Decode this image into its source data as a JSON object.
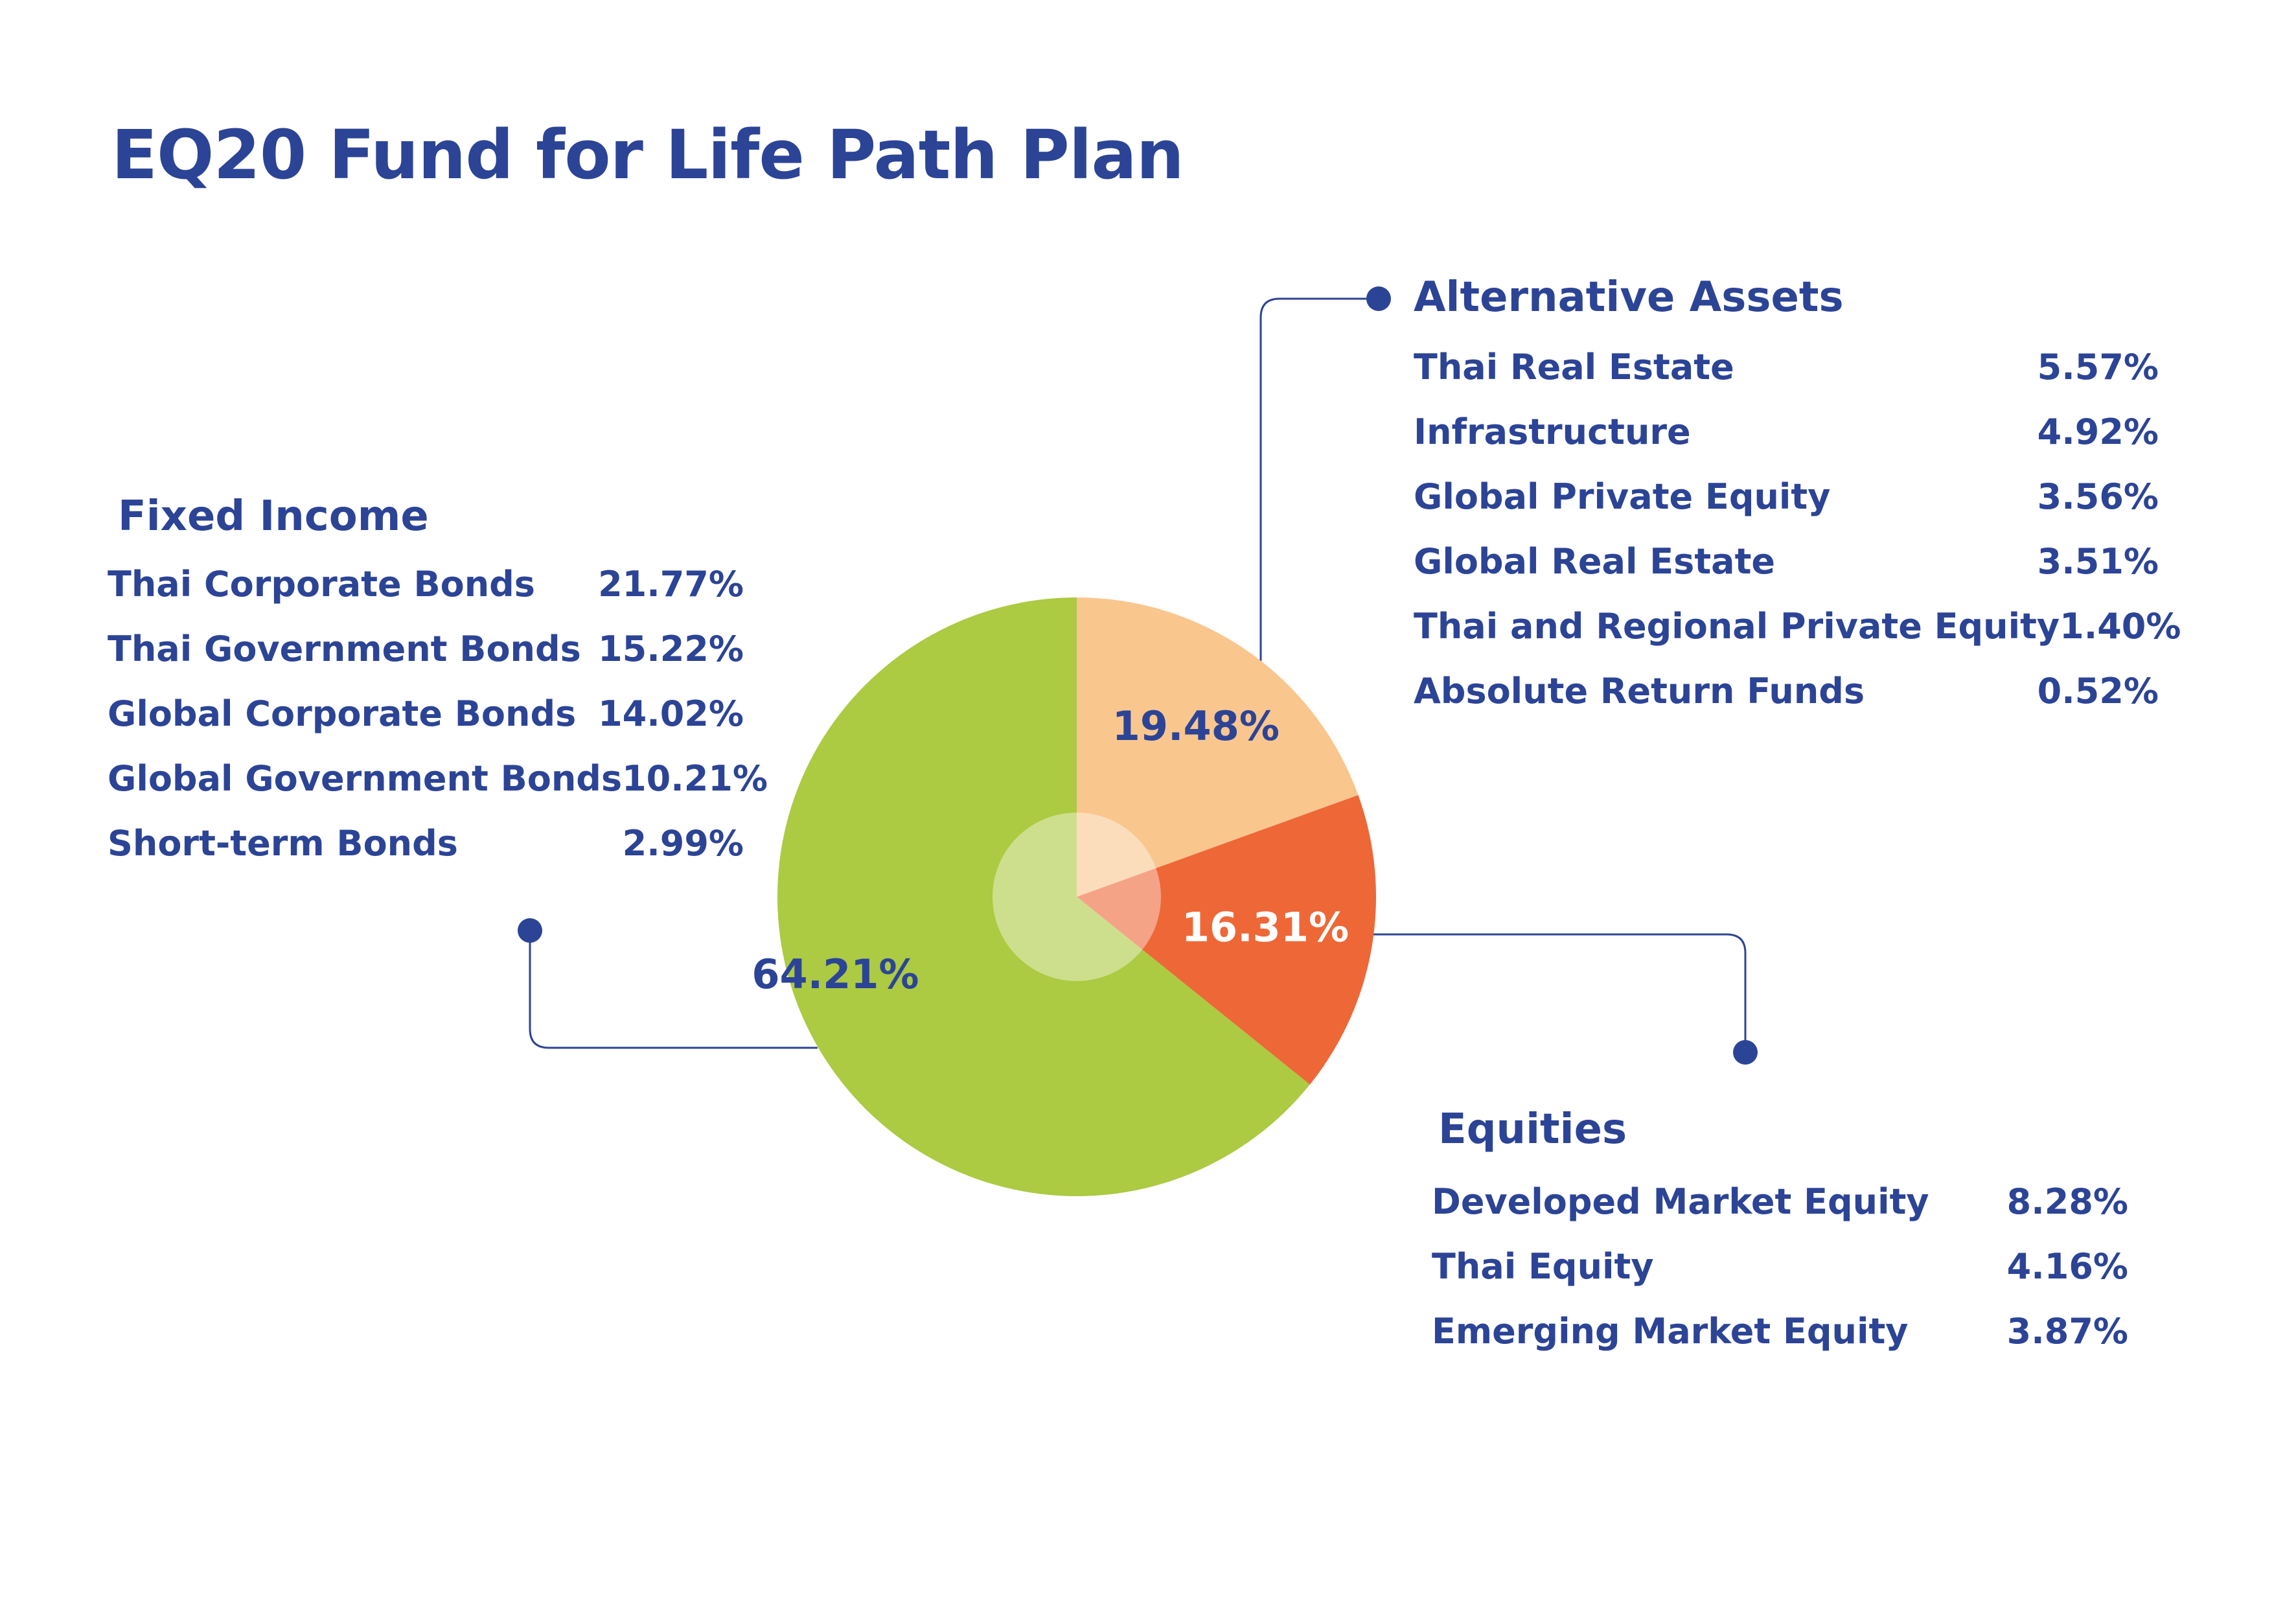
{
  "title": "EQ20 Fund for Life Path Plan",
  "colors": {
    "text": "#2c4496",
    "fixed_income": "#acca42",
    "alternative_assets": "#f9c68e",
    "equities": "#ee6737",
    "connector": "#2c4496",
    "center_overlay": "#ffffff"
  },
  "groups": {
    "fixed_income": {
      "title": "Fixed Income",
      "items": [
        {
          "label": "Thai Corporate Bonds",
          "value": "21.77%"
        },
        {
          "label": "Thai Government Bonds",
          "value": "15.22%"
        },
        {
          "label": "Global Corporate Bonds",
          "value": "14.02%"
        },
        {
          "label": "Global Government Bonds",
          "value": "10.21%"
        },
        {
          "label": "Short-term Bonds",
          "value": "2.99%"
        }
      ]
    },
    "alternative_assets": {
      "title": "Alternative Assets",
      "items": [
        {
          "label": "Thai Real Estate",
          "value": "5.57%"
        },
        {
          "label": "Infrastructure",
          "value": "4.92%"
        },
        {
          "label": "Global Private Equity",
          "value": "3.56%"
        },
        {
          "label": "Global Real Estate",
          "value": "3.51%"
        },
        {
          "label": "Thai and Regional Private Equity",
          "value": "1.40%"
        },
        {
          "label": "Absolute Return Funds",
          "value": "0.52%"
        }
      ]
    },
    "equities": {
      "title": "Equities",
      "items": [
        {
          "label": "Developed Market Equity",
          "value": "8.28%"
        },
        {
          "label": "Thai Equity",
          "value": "4.16%"
        },
        {
          "label": "Emerging Market Equity",
          "value": "3.87%"
        }
      ]
    }
  },
  "chart_data": {
    "type": "pie",
    "title": "EQ20 Fund for Life Path Plan",
    "slices": [
      {
        "name": "Alternative Assets",
        "value": 19.48,
        "label": "19.48%",
        "color": "#f9c68e",
        "label_color": "#2c4496"
      },
      {
        "name": "Equities",
        "value": 16.31,
        "label": "16.31%",
        "color": "#ee6737",
        "label_color": "#ffffff"
      },
      {
        "name": "Fixed Income",
        "value": 64.21,
        "label": "64.21%",
        "color": "#acca42",
        "label_color": "#2c4496"
      }
    ],
    "start_angle": "12 o'clock",
    "direction": "clockwise"
  }
}
